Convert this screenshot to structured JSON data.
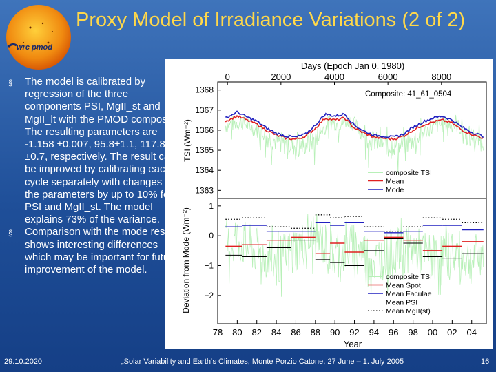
{
  "header": {
    "title": "Proxy Model of Irradiance Variations (2 of 2)",
    "logo_text": "wrc pmod"
  },
  "bullets": [
    "The model is calibrated by regression of the three components PSI, MgII_st and MgII_lt with the PMOD composite. The resulting parameters are -1.158 ±0.007, 95.8±1.1, 117.8 ±0.7, respectively. The result can be improved by calibrating each cycle separately with changes of the parameters by up to 10% for PSI and MgII_st. The model explains 73% of the variance.",
    "Comparison with the mode results shows interesting differences which may be important for future improvement of the model."
  ],
  "footer": {
    "date": "29.10.2020",
    "conference": "„Solar Variability and Earth‘s Climates, Monte Porzio Catone, 27 June – 1. July 2005",
    "page": "16"
  },
  "colors": {
    "title": "#ffd84a",
    "bg": "#2a5aa6",
    "tsi": "#b8f0b8",
    "mean": "#e02020",
    "mode": "#2020c0"
  },
  "chart_data": [
    {
      "type": "line",
      "title": "Days (Epoch Jan 0, 1980)",
      "top_axis_ticks": [
        "0",
        "2000",
        "4000",
        "6000",
        "8000"
      ],
      "top_axis_values": [
        0,
        2000,
        4000,
        6000,
        8000
      ],
      "annotation": "Composite: 41_61_0504",
      "ylabel": "TSI (Wm⁻²)",
      "ylim": [
        1362.6,
        1368.4
      ],
      "y_ticks": [
        "1368",
        "1367",
        "1366",
        "1365",
        "1364",
        "1363"
      ],
      "y_tick_values": [
        1368,
        1367,
        1366,
        1365,
        1364,
        1363
      ],
      "x_range": [
        1978,
        2005.5
      ],
      "legend_position": "bottom-right",
      "series": [
        {
          "name": "composite TSI",
          "x": [
            1978.8,
            1979.5,
            1980.5,
            1981.5,
            1982.5,
            1983.5,
            1984.5,
            1985.5,
            1986.5,
            1987.5,
            1988.5,
            1989.5,
            1990.5,
            1991.5,
            1992.5,
            1993.5,
            1994.5,
            1995.5,
            1996.5,
            1997.5,
            1998.5,
            1999.5,
            2000.5,
            2001.5,
            2002.5,
            2003.5,
            2004.5,
            2005.2
          ],
          "values": [
            1366.4,
            1366.5,
            1366.6,
            1366.3,
            1366.1,
            1365.8,
            1365.6,
            1365.5,
            1365.45,
            1365.6,
            1366.1,
            1366.6,
            1366.5,
            1366.7,
            1366.2,
            1365.8,
            1365.6,
            1365.5,
            1365.45,
            1365.6,
            1365.9,
            1366.2,
            1366.4,
            1366.5,
            1366.4,
            1366.0,
            1365.8,
            1365.7
          ]
        },
        {
          "name": "Mean",
          "x": [
            1978.8,
            1980,
            1981,
            1982,
            1983,
            1984,
            1985,
            1986,
            1987,
            1988,
            1989,
            1990,
            1991,
            1992,
            1993,
            1994,
            1995,
            1996,
            1997,
            1998,
            1999,
            2000,
            2001,
            2002,
            2003,
            2004,
            2005.2
          ],
          "values": [
            1366.45,
            1366.7,
            1366.5,
            1366.3,
            1366.0,
            1365.75,
            1365.6,
            1365.55,
            1365.7,
            1366.1,
            1366.6,
            1366.5,
            1366.6,
            1366.1,
            1365.85,
            1365.65,
            1365.6,
            1365.55,
            1365.7,
            1366.0,
            1366.25,
            1366.4,
            1366.5,
            1366.35,
            1366.0,
            1365.8,
            1365.6
          ]
        },
        {
          "name": "Mode",
          "x": [
            1978.8,
            1980,
            1981,
            1982,
            1983,
            1984,
            1985,
            1986,
            1987,
            1988,
            1989,
            1990,
            1991,
            1992,
            1993,
            1994,
            1995,
            1996,
            1997,
            1998,
            1999,
            2000,
            2001,
            2002,
            2003,
            2004,
            2005.2
          ],
          "values": [
            1366.6,
            1366.9,
            1366.65,
            1366.45,
            1366.1,
            1365.85,
            1365.7,
            1365.65,
            1365.8,
            1366.25,
            1366.8,
            1366.7,
            1366.8,
            1366.25,
            1365.95,
            1365.75,
            1365.7,
            1365.65,
            1365.8,
            1366.15,
            1366.4,
            1366.6,
            1366.7,
            1366.5,
            1366.15,
            1365.9,
            1365.7
          ]
        }
      ]
    },
    {
      "type": "line",
      "xlabel": "Year",
      "ylabel": "Deviation from Mode (Wm⁻²)",
      "ylim": [
        -2.95,
        1.25
      ],
      "y_ticks": [
        "1",
        "0",
        "−1",
        "−2"
      ],
      "y_tick_values": [
        1,
        0,
        -1,
        -2
      ],
      "x_range": [
        1978,
        2005.5
      ],
      "x_ticks": [
        "78",
        "80",
        "82",
        "84",
        "86",
        "88",
        "90",
        "92",
        "94",
        "96",
        "98",
        "00",
        "02",
        "04"
      ],
      "x_tick_values": [
        1978,
        1980,
        1982,
        1984,
        1986,
        1988,
        1990,
        1992,
        1994,
        1996,
        1998,
        2000,
        2002,
        2004
      ],
      "legend_position": "bottom-right",
      "series": [
        {
          "name": "composite TSI",
          "x": [
            1978.8,
            1980,
            1982,
            1984,
            1986,
            1988,
            1990,
            1992,
            1994,
            1996,
            1998,
            2000,
            2002,
            2004,
            2005.2
          ],
          "values": [
            -0.2,
            0.1,
            -0.3,
            -0.6,
            -0.2,
            0.2,
            -0.4,
            -0.1,
            -0.6,
            -0.3,
            -0.2,
            -0.5,
            -0.3,
            -0.6,
            -0.3
          ]
        },
        {
          "name": "Mean Spot",
          "steps": [
            [
              1978.8,
              1980.5,
              -0.35
            ],
            [
              1980.5,
              1983,
              -0.3
            ],
            [
              1983,
              1985.5,
              -0.15
            ],
            [
              1985.5,
              1988,
              -0.05
            ],
            [
              1988,
              1989.5,
              -0.6
            ],
            [
              1989.5,
              1991,
              -0.25
            ],
            [
              1991,
              1993,
              -0.55
            ],
            [
              1993,
              1995,
              -0.15
            ],
            [
              1995,
              1997,
              -0.05
            ],
            [
              1997,
              1999,
              -0.15
            ],
            [
              1999,
              2001,
              -0.5
            ],
            [
              2001,
              2003,
              -0.35
            ],
            [
              2003,
              2005.2,
              -0.2
            ]
          ]
        },
        {
          "name": "Mean Faculae",
          "steps": [
            [
              1978.8,
              1980.5,
              0.3
            ],
            [
              1980.5,
              1983,
              0.35
            ],
            [
              1983,
              1985.5,
              0.15
            ],
            [
              1985.5,
              1988,
              0.15
            ],
            [
              1988,
              1989.5,
              0.45
            ],
            [
              1989.5,
              1991,
              0.35
            ],
            [
              1991,
              1993,
              0.45
            ],
            [
              1993,
              1995,
              0.15
            ],
            [
              1995,
              1997,
              0.1
            ],
            [
              1997,
              1999,
              0.15
            ],
            [
              1999,
              2001,
              0.35
            ],
            [
              2001,
              2003,
              0.35
            ],
            [
              2003,
              2005.2,
              0.2
            ]
          ]
        },
        {
          "name": "Mean PSI",
          "steps": [
            [
              1978.8,
              1980.5,
              -0.65
            ],
            [
              1980.5,
              1983,
              -0.7
            ],
            [
              1983,
              1985.5,
              -0.4
            ],
            [
              1985.5,
              1988,
              -0.15
            ],
            [
              1988,
              1989.5,
              -0.8
            ],
            [
              1989.5,
              1991,
              -0.9
            ],
            [
              1991,
              1993,
              -1.0
            ],
            [
              1993,
              1995,
              -0.5
            ],
            [
              1995,
              1997,
              -0.1
            ],
            [
              1997,
              1999,
              -0.25
            ],
            [
              1999,
              2001,
              -0.7
            ],
            [
              2001,
              2003,
              -0.75
            ],
            [
              2003,
              2005.2,
              -0.6
            ]
          ]
        },
        {
          "name": "Mean MgII(st)",
          "steps": [
            [
              1978.8,
              1980.5,
              0.55
            ],
            [
              1980.5,
              1983,
              0.6
            ],
            [
              1983,
              1985.5,
              0.3
            ],
            [
              1985.5,
              1988,
              0.25
            ],
            [
              1988,
              1989.5,
              0.7
            ],
            [
              1989.5,
              1991,
              0.6
            ],
            [
              1991,
              1993,
              0.65
            ],
            [
              1993,
              1995,
              0.3
            ],
            [
              1995,
              1997,
              0.15
            ],
            [
              1997,
              1999,
              0.3
            ],
            [
              1999,
              2001,
              0.6
            ],
            [
              2001,
              2003,
              0.55
            ],
            [
              2003,
              2005.2,
              0.45
            ]
          ]
        }
      ]
    }
  ]
}
